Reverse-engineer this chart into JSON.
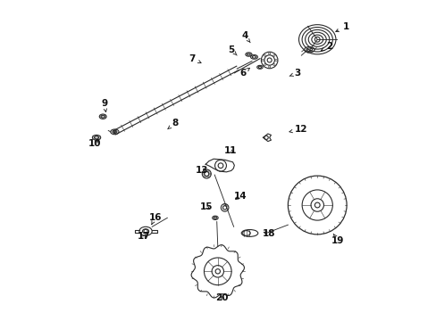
{
  "background_color": "#ffffff",
  "fig_width": 4.89,
  "fig_height": 3.6,
  "dpi": 100,
  "line_color": "#2a2a2a",
  "text_color": "#111111",
  "arrow_color": "#222222",
  "label_fontsize": 7.5,
  "labels": {
    "1": [
      0.9,
      0.92,
      0.858,
      0.9
    ],
    "2": [
      0.848,
      0.858,
      0.82,
      0.845
    ],
    "3": [
      0.748,
      0.775,
      0.715,
      0.762
    ],
    "4": [
      0.582,
      0.892,
      0.6,
      0.87
    ],
    "5": [
      0.54,
      0.848,
      0.558,
      0.83
    ],
    "6": [
      0.578,
      0.775,
      0.6,
      0.792
    ],
    "7": [
      0.418,
      0.82,
      0.448,
      0.805
    ],
    "8": [
      0.365,
      0.618,
      0.34,
      0.598
    ],
    "9": [
      0.142,
      0.678,
      0.148,
      0.65
    ],
    "10": [
      0.112,
      0.552,
      0.13,
      0.572
    ],
    "11": [
      0.538,
      0.53,
      0.555,
      0.518
    ],
    "12": [
      0.76,
      0.598,
      0.712,
      0.588
    ],
    "13": [
      0.448,
      0.468,
      0.468,
      0.458
    ],
    "14": [
      0.568,
      0.388,
      0.545,
      0.372
    ],
    "15": [
      0.462,
      0.355,
      0.48,
      0.342
    ],
    "16": [
      0.302,
      0.322,
      0.29,
      0.298
    ],
    "17": [
      0.268,
      0.262,
      0.278,
      0.275
    ],
    "18": [
      0.658,
      0.27,
      0.632,
      0.278
    ],
    "19": [
      0.875,
      0.248,
      0.86,
      0.27
    ],
    "20": [
      0.512,
      0.068,
      0.502,
      0.082
    ]
  }
}
